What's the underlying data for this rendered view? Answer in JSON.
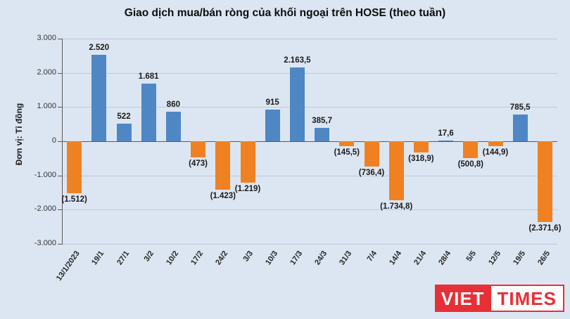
{
  "chart_data": {
    "type": "bar",
    "title": "Giao dịch mua/bán ròng của khối ngoại trên HOSE (theo tuần)",
    "ylabel": "Đơn vị: Tỉ đồng",
    "xlabel": "",
    "ylim": [
      -3000,
      3000
    ],
    "ytick_labels": [
      "3.000",
      "2.000",
      "1.000",
      "0",
      "-1.000",
      "-2.000",
      "-3.000"
    ],
    "grid": true,
    "legend": "none",
    "categories": [
      "13/1/2023",
      "19/1",
      "27/1",
      "3/2",
      "10/2",
      "17/2",
      "24/2",
      "3/3",
      "10/3",
      "17/3",
      "24/3",
      "31/3",
      "7/4",
      "14/4",
      "21/4",
      "28/4",
      "5/5",
      "12/5",
      "19/5",
      "26/5"
    ],
    "values": [
      -1512,
      2520,
      522,
      1681,
      860,
      -473,
      -1423,
      -1219,
      915,
      2163.5,
      385.7,
      -145.5,
      -736.4,
      -1734.8,
      -318.9,
      17.6,
      -500.8,
      -144.9,
      785.5,
      -2371.6
    ],
    "value_labels": [
      "(1.512)",
      "2.520",
      "522",
      "1.681",
      "860",
      "(473)",
      "(1.423)",
      "(1.219)",
      "915",
      "2.163,5",
      "385,7",
      "(145,5)",
      "(736,4)",
      "(1.734,8)",
      "(318,9)",
      "17,6",
      "(500,8)",
      "(144,9)",
      "785,5",
      "(2.371,6)"
    ],
    "colors": {
      "positive": "#4e87c4",
      "negative": "#f08122"
    }
  },
  "watermark": {
    "part1": "VIET",
    "part2": "TIMES"
  }
}
